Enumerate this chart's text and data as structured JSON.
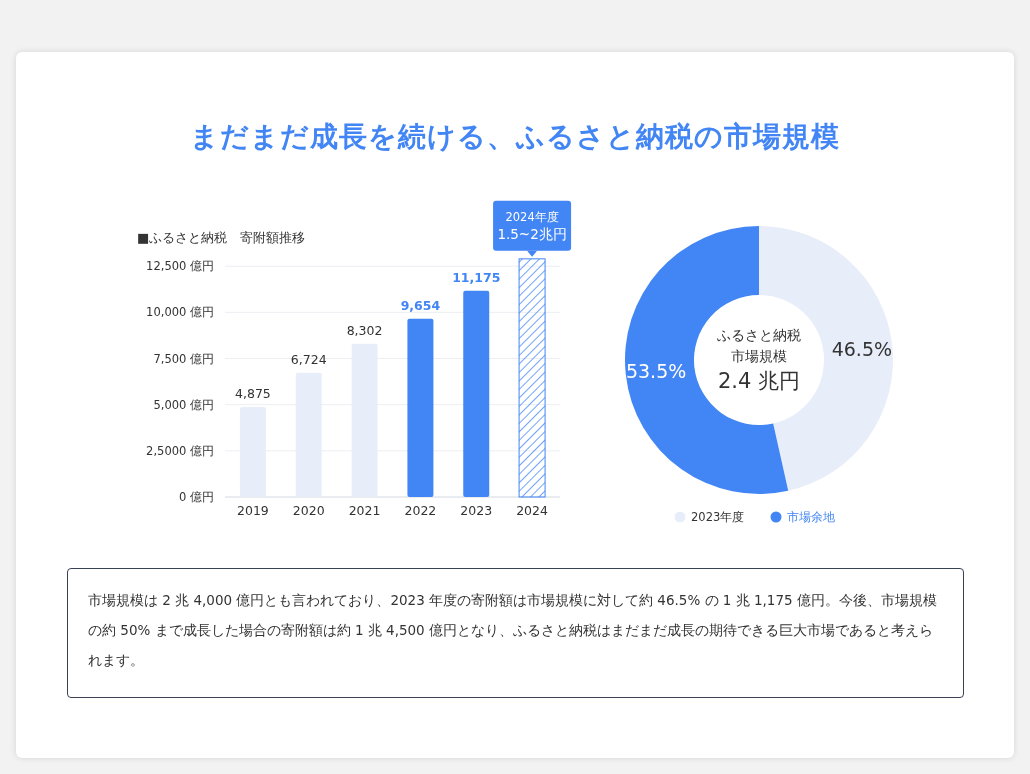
{
  "chart_data": [
    {
      "type": "bar",
      "title": "まだまだ成長を続ける、ふるさと納税の市場規模",
      "subtitle": "■ふるさと納税　寄附額推移",
      "categories": [
        "2019",
        "2020",
        "2021",
        "2022",
        "2023",
        "2024"
      ],
      "values": [
        4875,
        6724,
        8302,
        9654,
        11175,
        12900
      ],
      "colors": [
        "#e8eef9",
        "#e8eef9",
        "#e8eef9",
        "#4285f4",
        "#4285f4",
        "#4285f4"
      ],
      "value_labels": [
        "4,875",
        "6,724",
        "8,302",
        "9,654",
        "11,175",
        null
      ],
      "ylim": [
        0,
        13000
      ],
      "yticks": [
        {
          "value": 0,
          "label": "0 億円"
        },
        {
          "value": 2500,
          "label": "2,5000 億円"
        },
        {
          "value": 5000,
          "label": "5,000 億円"
        },
        {
          "value": 7500,
          "label": "7,500 億円"
        },
        {
          "value": 10000,
          "label": "10,000 億円"
        },
        {
          "value": 12500,
          "label": "12,500 億円"
        }
      ],
      "grid": "y",
      "annotations": [
        {
          "text": "2024年度\n1.5~2兆円",
          "x": "2024",
          "y": 12900
        },
        "市場規模は 2 兆 4,000 億円とも言われており、2023 年度の寄附額は市場規模に対して約 46.5% の 1 兆 1,175 億円。今後、市場規模の約 50% まで成長した場合の寄附額は約 1 兆 4,500 億円となり、ふるさと納税はまだまだ成長の期待できる巨大市場であると考えられます。"
      ]
    },
    {
      "type": "donut",
      "categories": [
        "2023年度",
        "市場余地"
      ],
      "values": [
        46.5,
        53.5
      ],
      "colors": [
        "#e8eef9",
        "#4285f4"
      ],
      "value_labels": [
        "46.5%",
        "53.5%"
      ],
      "legend": "bottom",
      "annotations": [
        "ふるさと納税",
        "市場規模",
        "2.4 兆円"
      ]
    }
  ]
}
